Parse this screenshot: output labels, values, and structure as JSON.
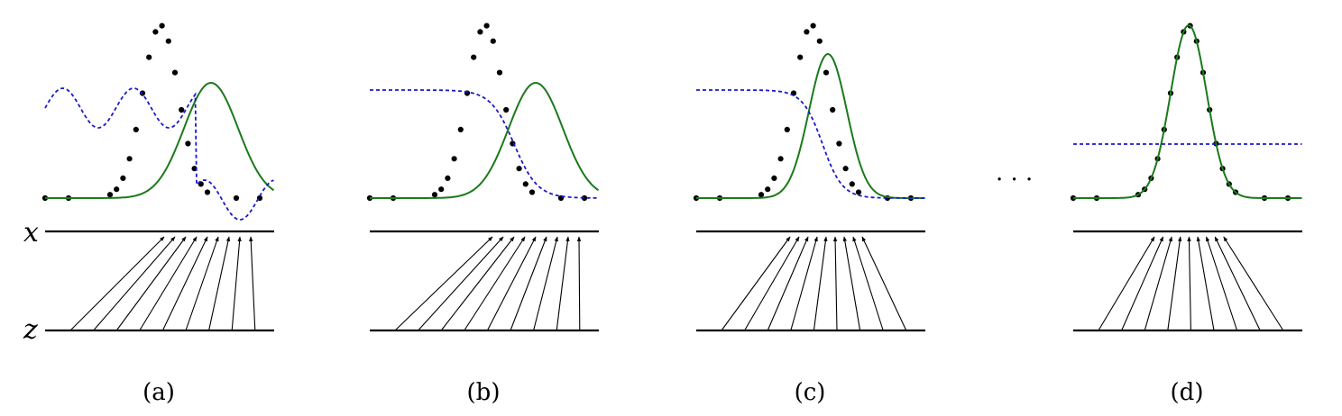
{
  "axis_labels": {
    "x": "x",
    "z": "z"
  },
  "ellipsis": "· · ·",
  "colors": {
    "data_dots": "#000000",
    "model_density": "#1a7a1a",
    "discriminator": "#1a1acc",
    "mapping_arrows": "#000000"
  },
  "panels": [
    {
      "id": "a",
      "caption": "(a)"
    },
    {
      "id": "b",
      "caption": "(b)"
    },
    {
      "id": "c",
      "caption": "(c)"
    },
    {
      "id": "d",
      "caption": "(d)"
    }
  ]
}
